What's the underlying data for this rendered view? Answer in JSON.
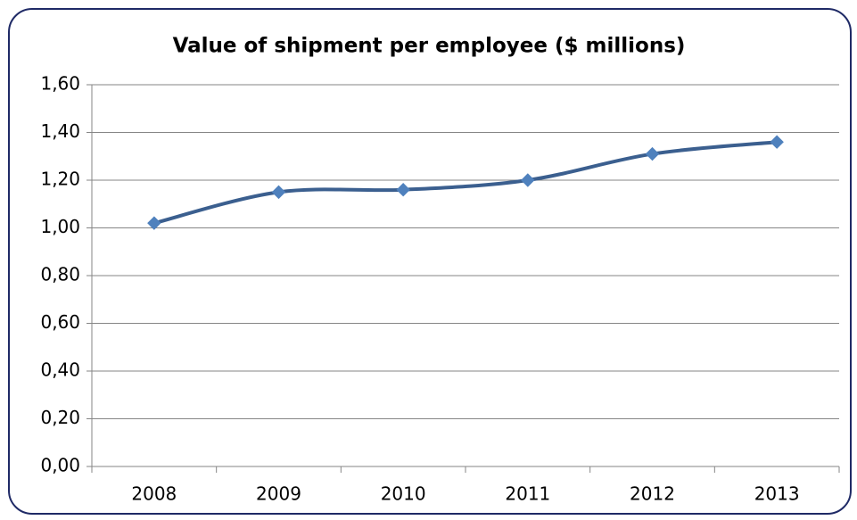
{
  "chart_data": {
    "type": "line",
    "title": "Value of shipment per employee ($ millions)",
    "categories": [
      "2008",
      "2009",
      "2010",
      "2011",
      "2012",
      "2013"
    ],
    "values": [
      1.02,
      1.15,
      1.16,
      1.2,
      1.31,
      1.36
    ],
    "color": "#3b5f8f",
    "marker_color": "#4f81bd",
    "ylim": [
      0,
      1.6
    ],
    "yticks": [
      {
        "value": 0,
        "label": "0,00"
      },
      {
        "value": 0.2,
        "label": "0,20"
      },
      {
        "value": 0.4,
        "label": "0,40"
      },
      {
        "value": 0.6,
        "label": "0,60"
      },
      {
        "value": 0.8,
        "label": "0,80"
      },
      {
        "value": 1.0,
        "label": "1,00"
      },
      {
        "value": 1.2,
        "label": "1,20"
      },
      {
        "value": 1.4,
        "label": "1,40"
      },
      {
        "value": 1.6,
        "label": "1,60"
      }
    ],
    "grid": true,
    "smooth": true
  }
}
